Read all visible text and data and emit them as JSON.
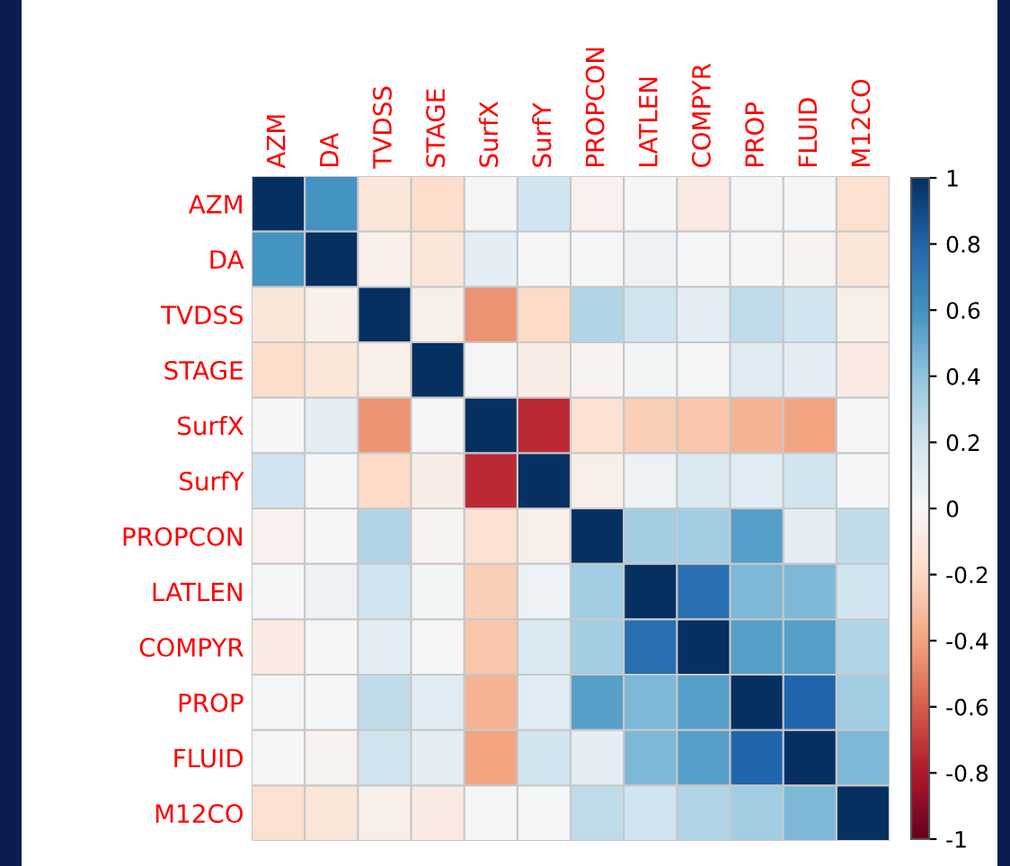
{
  "chart_data": {
    "type": "heatmap",
    "categories": [
      "AZM",
      "DA",
      "TVDSS",
      "STAGE",
      "SurfX",
      "SurfY",
      "PROPCON",
      "LATLEN",
      "COMPYR",
      "PROP",
      "FLUID",
      "M12CO"
    ],
    "y_categories": [
      "AZM",
      "DA",
      "TVDSS",
      "STAGE",
      "SurfX",
      "SurfY",
      "PROPCON",
      "LATLEN",
      "COMPYR",
      "PROP",
      "FLUID",
      "M12CO"
    ],
    "cells": [
      [
        1,
        0.6,
        -0.12,
        -0.18,
        0.01,
        0.2,
        -0.04,
        0.01,
        -0.08,
        0.02,
        0.01,
        -0.16
      ],
      [
        0.6,
        1,
        -0.05,
        -0.12,
        0.1,
        0.01,
        0.01,
        0.06,
        0.01,
        0.01,
        -0.03,
        -0.12
      ],
      [
        -0.12,
        -0.05,
        1,
        -0.06,
        -0.45,
        -0.2,
        0.3,
        0.2,
        0.1,
        0.25,
        0.2,
        -0.06
      ],
      [
        -0.18,
        -0.12,
        -0.06,
        1,
        0.02,
        -0.07,
        -0.03,
        0.03,
        0.02,
        0.13,
        0.1,
        -0.08
      ],
      [
        0.01,
        0.1,
        -0.45,
        0.02,
        1,
        -0.75,
        -0.15,
        -0.25,
        -0.28,
        -0.35,
        -0.4,
        0.01
      ],
      [
        0.2,
        0.01,
        -0.2,
        -0.07,
        -0.75,
        1,
        -0.06,
        0.06,
        0.15,
        0.12,
        0.2,
        0.01
      ],
      [
        -0.04,
        0.01,
        0.3,
        -0.03,
        -0.15,
        -0.06,
        1,
        0.35,
        0.35,
        0.55,
        0.1,
        0.25
      ],
      [
        0.01,
        0.06,
        0.2,
        0.03,
        -0.25,
        0.06,
        0.35,
        1,
        0.75,
        0.45,
        0.45,
        0.2
      ],
      [
        -0.08,
        0.01,
        0.1,
        0.01,
        -0.28,
        0.15,
        0.35,
        0.75,
        1,
        0.55,
        0.55,
        0.3
      ],
      [
        0.02,
        0.01,
        0.25,
        0.12,
        -0.35,
        0.12,
        0.55,
        0.45,
        0.55,
        1,
        0.8,
        0.35
      ],
      [
        0.01,
        -0.03,
        0.2,
        0.1,
        -0.4,
        0.2,
        0.1,
        0.45,
        0.55,
        0.8,
        1,
        0.45
      ],
      [
        -0.16,
        -0.12,
        -0.06,
        -0.08,
        0.01,
        0.01,
        0.25,
        0.2,
        0.3,
        0.35,
        0.45,
        1
      ]
    ],
    "clim": [
      -1,
      1
    ],
    "cticks": [
      1,
      0.8,
      0.6,
      0.4,
      0.2,
      0,
      -0.2,
      -0.4,
      -0.6,
      -0.8,
      -1
    ],
    "grid": true
  }
}
